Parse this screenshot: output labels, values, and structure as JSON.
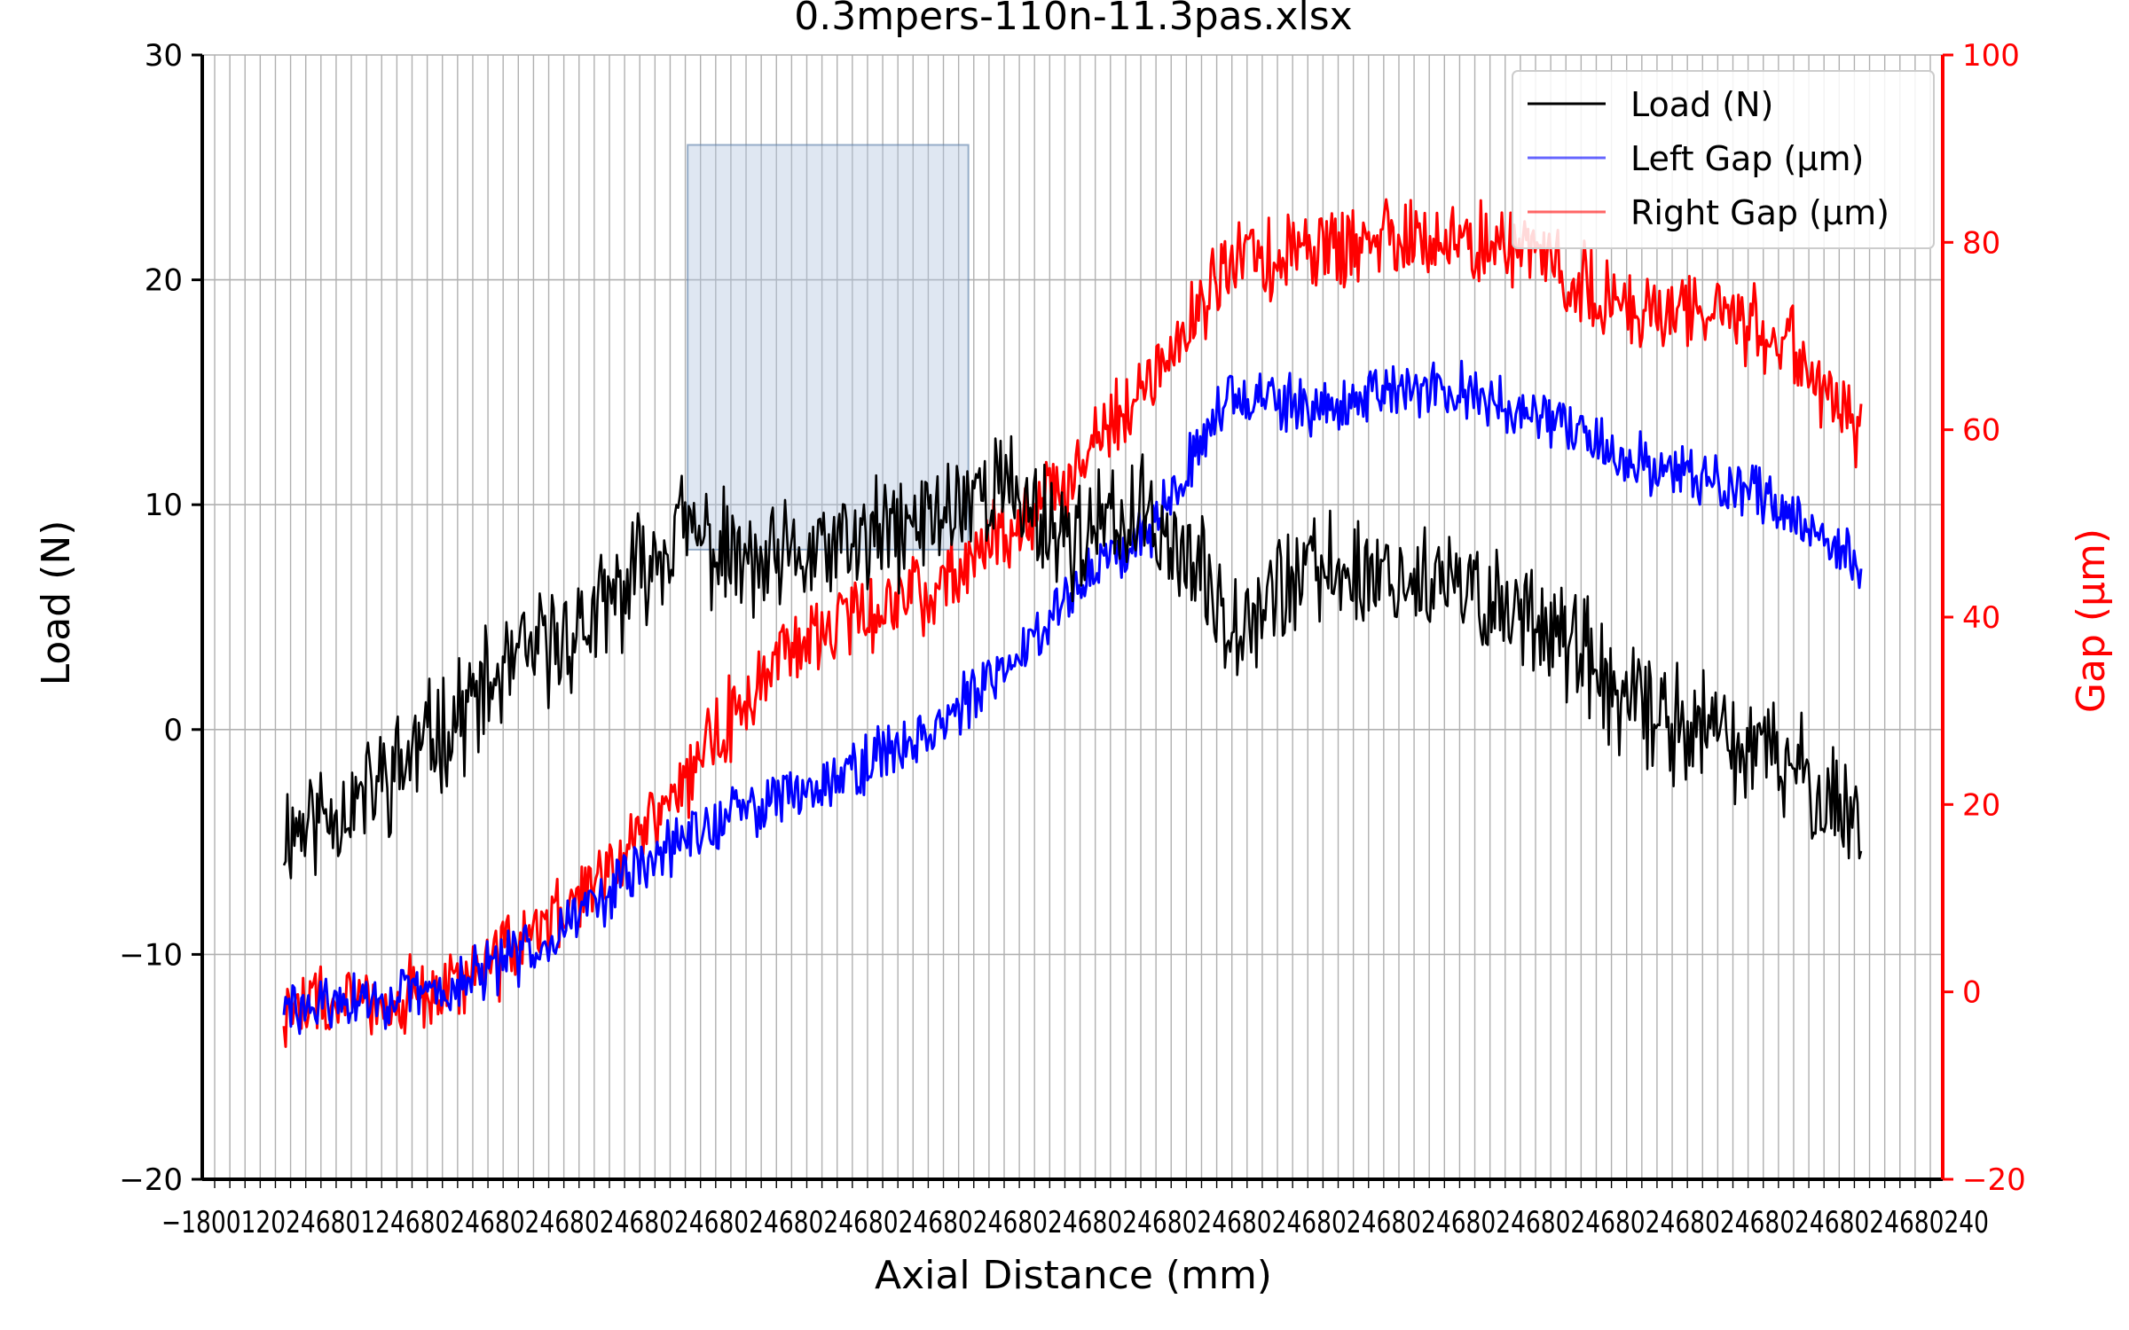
{
  "chart_data": {
    "type": "line",
    "title": "0.3mpers-110n-11.3pas.xlsx",
    "xlabel": "Axial Distance (mm)",
    "ylabel_left": "Load (N)",
    "ylabel_right": "Gap (µm)",
    "x_tick_text": "−1800120246801246802468024680246802468024680246802468024680246802468024680246802468024680246802468024680246802468024680240",
    "ylim_left": [
      -20,
      30
    ],
    "ylim_right": [
      -20,
      100
    ],
    "yticks_left": [
      -20,
      -10,
      0,
      10,
      20,
      30
    ],
    "yticks_right": [
      -20,
      0,
      20,
      40,
      60,
      80,
      100
    ],
    "grid": true,
    "legend_position": "top-right",
    "colors": {
      "load": "#000000",
      "left_gap": "#0000ff",
      "right_gap": "#ff0000",
      "highlight": "#b0c4de"
    },
    "x_points": [
      0,
      5,
      10,
      15,
      20,
      25,
      30,
      35,
      40,
      45,
      50,
      55,
      60,
      65,
      70,
      75,
      80,
      85,
      90,
      95,
      100
    ],
    "highlight_region": {
      "x": [
        25.6,
        43.4
      ],
      "y_left": [
        8,
        26
      ]
    },
    "series": [
      {
        "name": "Load (N)",
        "axis": "left",
        "values": [
          -4.5,
          -3,
          0,
          3,
          5,
          9,
          7,
          8,
          9,
          11,
          8.5,
          9.5,
          5,
          7,
          7,
          6,
          5,
          1,
          0,
          -1.5,
          -4
        ]
      },
      {
        "name": "Left Gap (µm)",
        "axis": "right",
        "values": [
          -2,
          -1,
          0,
          4,
          10,
          16,
          20,
          23,
          27,
          33,
          43,
          50,
          64,
          62,
          64,
          64,
          61,
          57,
          55,
          52,
          45
        ]
      },
      {
        "name": "Right Gap (µm)",
        "axis": "right",
        "values": [
          -2,
          -1,
          0,
          5,
          12,
          22,
          33,
          40,
          42,
          48,
          55,
          66,
          78,
          79,
          80,
          80,
          78,
          73,
          73,
          70,
          60
        ]
      }
    ]
  }
}
